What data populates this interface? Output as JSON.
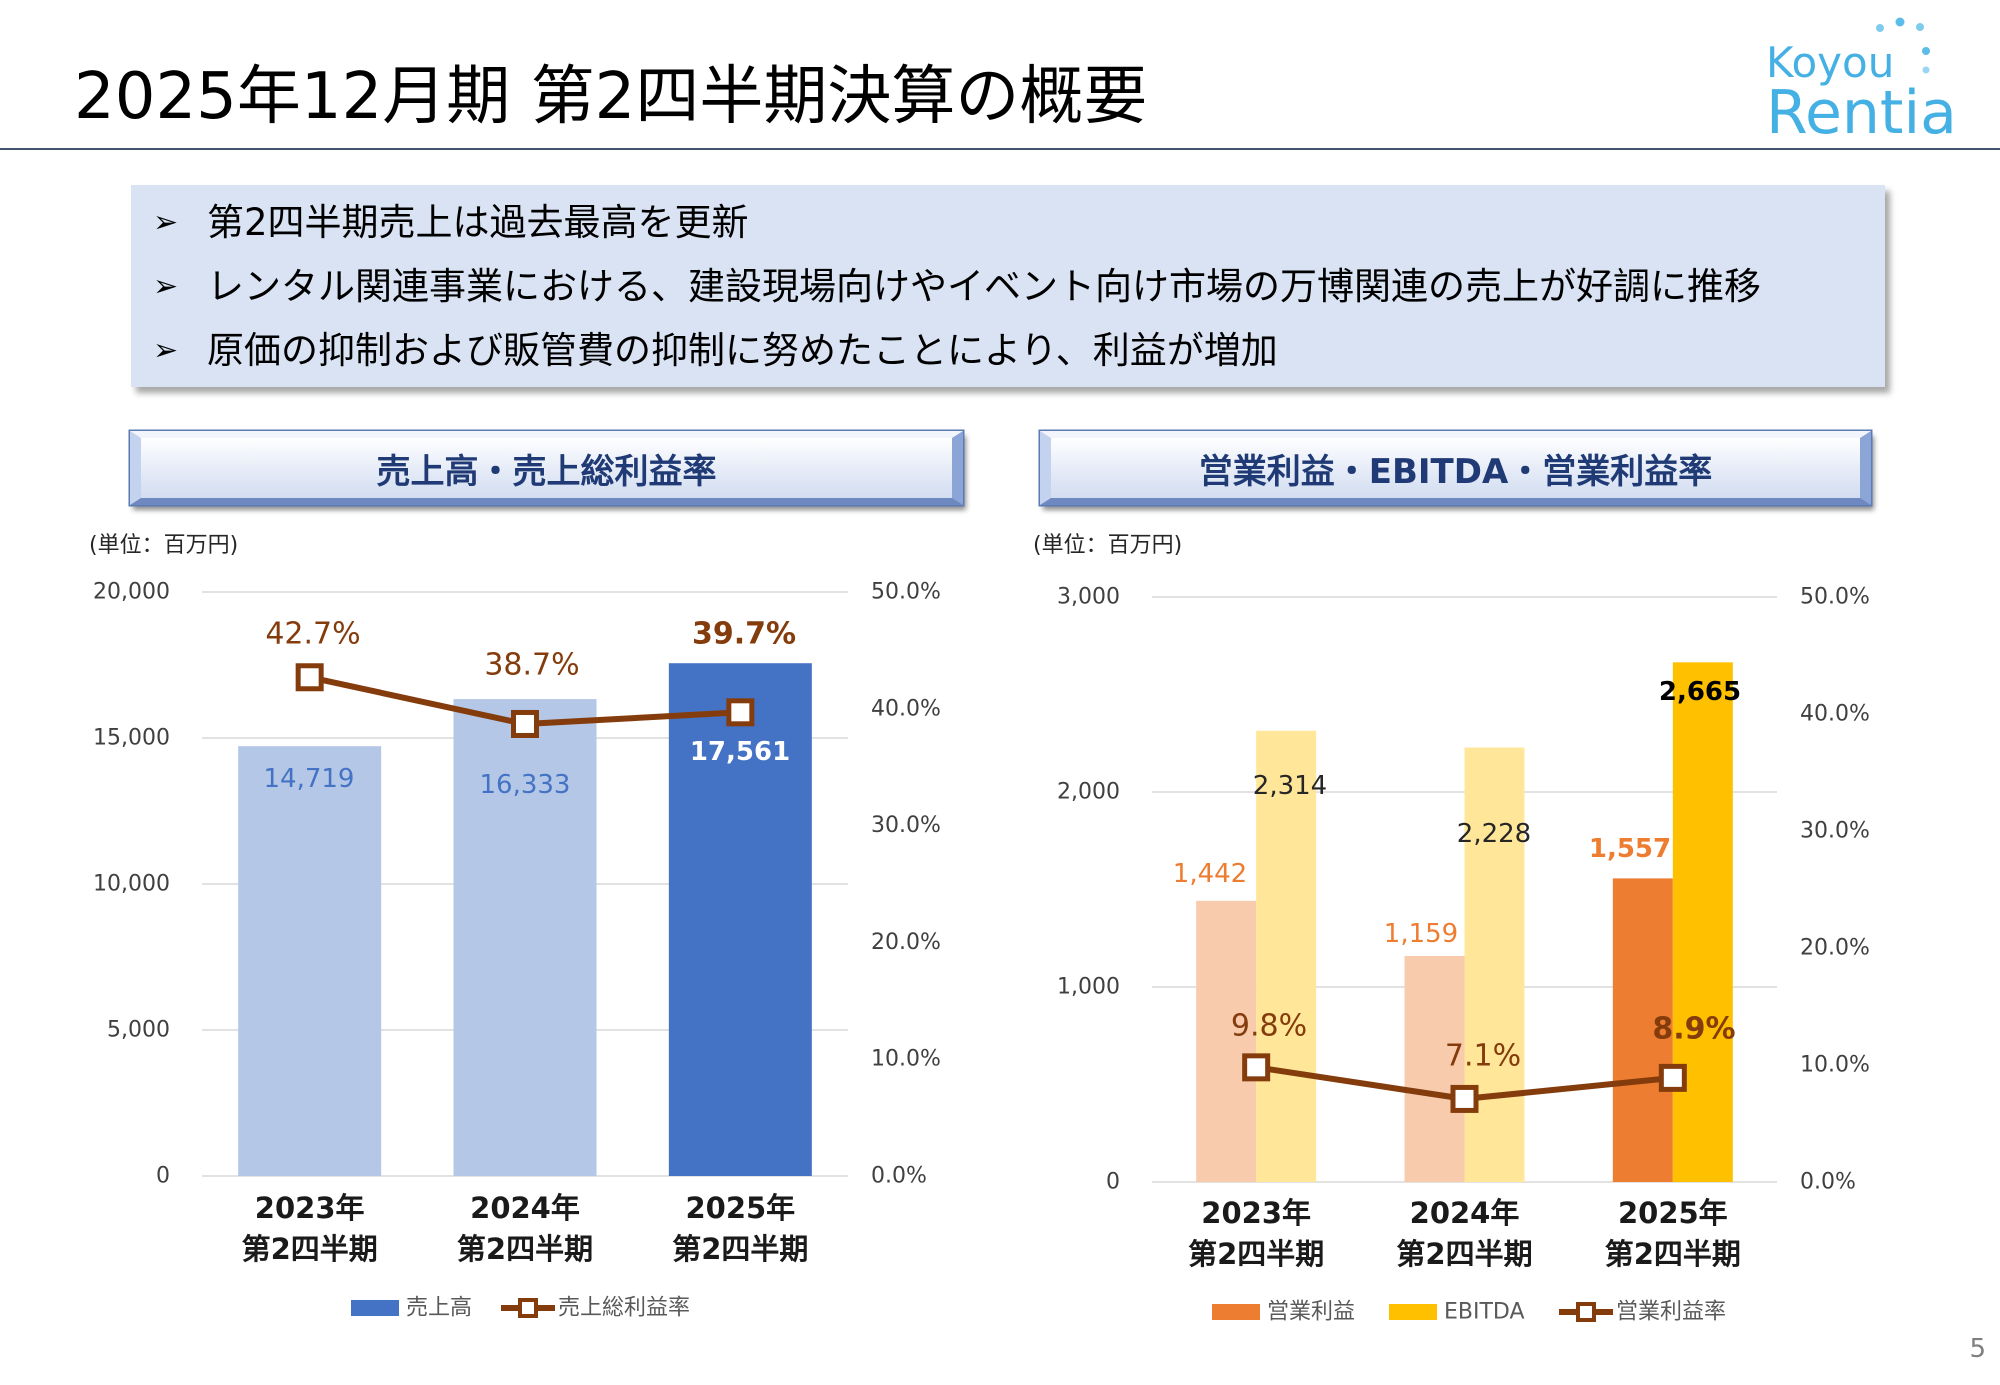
{
  "header": {
    "title": "2025年12月期 第2四半期決算の概要",
    "logo": {
      "line1": "Koyou",
      "line2": "Rentia",
      "color": "#45b0e3"
    },
    "page_number": "5"
  },
  "highlights": {
    "bullet": "➢",
    "items": [
      "第2四半期売上は過去最高を更新",
      "レンタル関連事業における、建設現場向けやイベント向け市場の万博関連の売上が好調に推移",
      "原価の抑制および販管費の抑制に努めたことにより、利益が増加"
    ]
  },
  "chart_data": [
    {
      "type": "bar",
      "title": "売上高・売上総利益率",
      "unit_note": "(単位：百万円)",
      "categories": [
        [
          "2023年",
          "第2四半期"
        ],
        [
          "2024年",
          "第2四半期"
        ],
        [
          "2025年",
          "第2四半期"
        ]
      ],
      "y_left": {
        "min": 0,
        "max": 20000,
        "ticks": [
          0,
          5000,
          10000,
          15000,
          20000
        ],
        "tick_labels": [
          "0",
          "5,000",
          "10,000",
          "15,000",
          "20,000"
        ]
      },
      "y_right": {
        "min": 0,
        "max": 50,
        "ticks": [
          0,
          10,
          20,
          30,
          40,
          50
        ],
        "tick_labels": [
          "0.0%",
          "10.0%",
          "20.0%",
          "30.0%",
          "40.0%",
          "50.0%"
        ]
      },
      "grid": true,
      "legend": "bottom",
      "series": [
        {
          "name": "売上高",
          "type": "bar",
          "y_axis": "left",
          "values": [
            14719,
            16333,
            17561
          ],
          "labels": [
            "14,719",
            "16,333",
            "17,561"
          ],
          "bar_colors": [
            "#b4c7e7",
            "#b4c7e7",
            "#4472c4"
          ],
          "label_colors": [
            "#4472c4",
            "#4472c4",
            "#ffffff"
          ],
          "label_bold": [
            false,
            false,
            true
          ]
        },
        {
          "name": "売上総利益率",
          "type": "line",
          "y_axis": "right",
          "values": [
            42.7,
            38.7,
            39.7
          ],
          "labels": [
            "42.7%",
            "38.7%",
            "39.7%"
          ],
          "color": "#843c0c",
          "label_colors": [
            "#843c0c",
            "#843c0c",
            "#843c0c"
          ],
          "label_bold": [
            false,
            false,
            true
          ]
        }
      ]
    },
    {
      "type": "bar",
      "title": "営業利益・EBITDA・営業利益率",
      "unit_note": "(単位：百万円)",
      "categories": [
        [
          "2023年",
          "第2四半期"
        ],
        [
          "2024年",
          "第2四半期"
        ],
        [
          "2025年",
          "第2四半期"
        ]
      ],
      "y_left": {
        "min": 0,
        "max": 3000,
        "ticks": [
          0,
          1000,
          2000,
          3000
        ],
        "tick_labels": [
          "0",
          "1,000",
          "2,000",
          "3,000"
        ]
      },
      "y_right": {
        "min": 0,
        "max": 50,
        "ticks": [
          0,
          10,
          20,
          30,
          40,
          50
        ],
        "tick_labels": [
          "0.0%",
          "10.0%",
          "20.0%",
          "30.0%",
          "40.0%",
          "50.0%"
        ]
      },
      "grid": true,
      "legend": "bottom",
      "series": [
        {
          "name": "営業利益",
          "type": "bar",
          "y_axis": "left",
          "values": [
            1442,
            1159,
            1557
          ],
          "labels": [
            "1,442",
            "1,159",
            "1,557"
          ],
          "bar_colors": [
            "#f8cbad",
            "#f8cbad",
            "#ed7d31"
          ],
          "label_colors": [
            "#ed7d31",
            "#ed7d31",
            "#ed7d31"
          ],
          "label_bold": [
            false,
            false,
            true
          ]
        },
        {
          "name": "EBITDA",
          "type": "bar",
          "y_axis": "left",
          "values": [
            2314,
            2228,
            2665
          ],
          "labels": [
            "2,314",
            "2,228",
            "2,665"
          ],
          "bar_colors": [
            "#ffe699",
            "#ffe699",
            "#ffc000"
          ],
          "label_colors": [
            "#262626",
            "#262626",
            "#000000"
          ],
          "label_bold": [
            false,
            false,
            true
          ]
        },
        {
          "name": "営業利益率",
          "type": "line",
          "y_axis": "right",
          "values": [
            9.8,
            7.1,
            8.9
          ],
          "labels": [
            "9.8%",
            "7.1%",
            "8.9%"
          ],
          "color": "#843c0c",
          "label_colors": [
            "#843c0c",
            "#843c0c",
            "#843c0c"
          ],
          "label_bold": [
            false,
            false,
            true
          ]
        }
      ]
    }
  ]
}
